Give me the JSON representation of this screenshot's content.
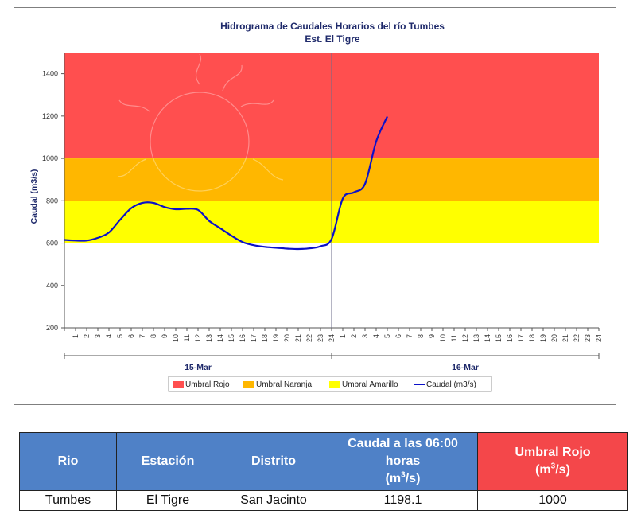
{
  "chart_data": {
    "type": "line",
    "title": "Hidrograma de Caudales Horarios del río Tumbes",
    "subtitle": "Est. El Tigre",
    "ylabel": "Caudal  (m3/s)",
    "ylim": [
      200,
      1500
    ],
    "yticks": [
      200,
      400,
      600,
      800,
      1000,
      1200,
      1400
    ],
    "days": [
      "15-Mar",
      "16-Mar"
    ],
    "hour_ticks": [
      "1",
      "2",
      "3",
      "4",
      "5",
      "6",
      "7",
      "8",
      "9",
      "10",
      "11",
      "12",
      "13",
      "14",
      "15",
      "16",
      "17",
      "18",
      "19",
      "20",
      "21",
      "22",
      "23",
      "24",
      "1",
      "2",
      "3",
      "4",
      "5",
      "6",
      "7",
      "8",
      "9",
      "10",
      "11",
      "12",
      "13",
      "14",
      "15",
      "16",
      "17",
      "18",
      "19",
      "20",
      "21",
      "22",
      "23",
      "24"
    ],
    "thresholds": [
      {
        "name": "Umbral Rojo",
        "from": 1000,
        "to": 1500,
        "color": "#ff4f4f"
      },
      {
        "name": "Umbral Naranja",
        "from": 800,
        "to": 1000,
        "color": "#ffb700"
      },
      {
        "name": "Umbral Amarillo",
        "from": 600,
        "to": 800,
        "color": "#ffff00"
      }
    ],
    "series": [
      {
        "name": "Caudal (m3/s)",
        "color": "#0b10c9",
        "x": [
          1,
          2,
          3,
          4,
          5,
          6,
          7,
          8,
          9,
          10,
          11,
          12,
          13,
          14,
          15,
          16,
          17,
          18,
          19,
          20,
          21,
          22,
          23,
          24,
          25,
          26,
          27,
          28,
          29,
          30
        ],
        "values": [
          615,
          612,
          612,
          625,
          650,
          710,
          765,
          790,
          790,
          770,
          760,
          762,
          757,
          705,
          670,
          635,
          605,
          590,
          582,
          578,
          574,
          572,
          575,
          585,
          620,
          810,
          840,
          880,
          1080,
          1198
        ]
      }
    ],
    "legend": [
      "Umbral Rojo",
      "Umbral Naranja",
      "Umbral Amarillo",
      "Caudal (m3/s)"
    ],
    "legend_position": "bottom",
    "grid": false
  },
  "table": {
    "headers": [
      "Rio",
      "Estación",
      "Distrito",
      "Caudal a las 06:00 horas",
      "Umbral Rojo"
    ],
    "header_units": "(m3/s)",
    "rows": [
      [
        "Tumbes",
        "El Tigre",
        "San Jacinto",
        "1198.1",
        "1000"
      ]
    ]
  }
}
